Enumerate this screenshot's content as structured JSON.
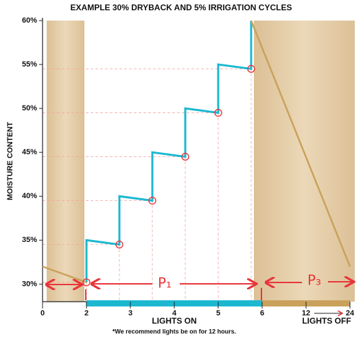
{
  "chart_data": {
    "type": "line",
    "title": "EXAMPLE 30% DRYBACK AND 5% IRRIGATION CYCLES",
    "y_label": "MOISTURE CONTENT",
    "x_labels": [
      "LIGHTS ON",
      "LIGHTS OFF"
    ],
    "footnote": "*We recommend lights be on for 12 hours.",
    "annotations": [
      "P₁",
      "P₃"
    ],
    "xlim": [
      0,
      24
    ],
    "xticks": [
      0,
      2,
      3,
      4,
      5,
      6,
      12,
      24
    ],
    "ylim": [
      28,
      60
    ],
    "yticks": [
      {
        "value": 30,
        "label": "30%"
      },
      {
        "value": 35,
        "label": "35%"
      },
      {
        "value": 40,
        "label": "40%"
      },
      {
        "value": 45,
        "label": "45%"
      },
      {
        "value": 50,
        "label": "50%"
      },
      {
        "value": 55,
        "label": "55%"
      },
      {
        "value": 60,
        "label": "60%"
      }
    ],
    "lights_on": [
      2,
      6
    ],
    "lights_on_color": "#1bb8d0",
    "lights_off_color": "#c9a15a",
    "series": [
      {
        "color": "#1bb8d0",
        "x": [
          2,
          2,
          2.75,
          2.75,
          3.5,
          3.5,
          4.25,
          4.25,
          5,
          5,
          5.75,
          5.75
        ],
        "values": [
          30.2,
          35,
          34.5,
          40,
          39.5,
          45,
          44.5,
          50,
          49.5,
          55,
          54.5,
          60
        ]
      },
      {
        "color": "#c9a15a",
        "x": [
          0,
          2
        ],
        "values": [
          32,
          30.2
        ]
      },
      {
        "color": "#c9a15a",
        "x": [
          5.75,
          24
        ],
        "values": [
          60,
          32
        ]
      }
    ],
    "markers": {
      "color": "#e8353a",
      "x": [
        2,
        2.75,
        3.5,
        4.25,
        5,
        5.75
      ],
      "values": [
        30.2,
        34.5,
        39.5,
        44.5,
        49.5,
        54.5
      ]
    }
  }
}
